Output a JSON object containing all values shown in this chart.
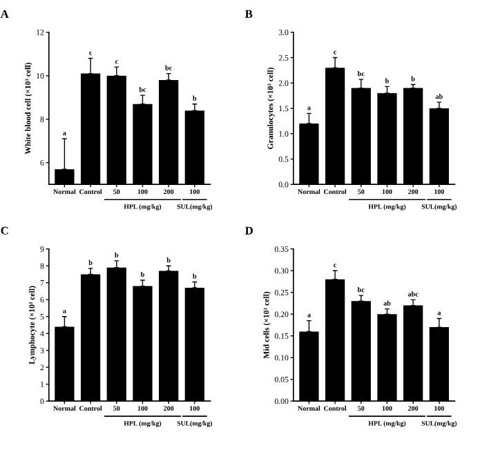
{
  "chart_data": [
    {
      "type": "bar",
      "title": "A",
      "ylabel": "White blood cell (×10³ cell)",
      "categories": [
        "Normal",
        "Control",
        "50",
        "100",
        "200",
        "100"
      ],
      "values": [
        5.7,
        10.1,
        10.0,
        8.7,
        9.8,
        8.4
      ],
      "errors": [
        1.4,
        0.7,
        0.4,
        0.4,
        0.3,
        0.3
      ],
      "color": "#000000",
      "ylim": [
        5,
        12
      ],
      "yticks": [
        6,
        8,
        10,
        12
      ],
      "annotations": [
        {
          "text": "a",
          "x": "Normal",
          "y": 7.1
        },
        {
          "text": "c",
          "x": "Control",
          "y": 10.8
        },
        {
          "text": "c",
          "x": "50",
          "y": 10.4
        },
        {
          "text": "bc",
          "y": 9.1
        },
        {
          "text": "bc",
          "x": "200",
          "y": 10.1
        },
        {
          "text": "b",
          "y": 8.7
        },
        "HPL (mg/kg)",
        "SUL(mg/kg)"
      ]
    },
    {
      "type": "bar",
      "title": "B",
      "ylabel": "Granulocytes (×10³ cell)",
      "categories": [
        "Normal",
        "Control",
        "50",
        "100",
        "200",
        "100"
      ],
      "values": [
        1.2,
        2.3,
        1.9,
        1.8,
        1.9,
        1.5
      ],
      "errors": [
        0.2,
        0.2,
        0.17,
        0.13,
        0.07,
        0.12
      ],
      "color": "#000000",
      "ylim": [
        0,
        3.0
      ],
      "yticks": [
        {
          "value": 0,
          "label": "0.0"
        },
        0.5,
        {
          "value": 1,
          "label": "1.0"
        },
        1.5,
        {
          "value": 2,
          "label": "2.0"
        },
        2.5,
        {
          "value": 3,
          "label": "3.0"
        }
      ],
      "annotations": [
        {
          "text": "a",
          "x": "Normal",
          "y": 1.4
        },
        {
          "text": "c",
          "x": "Control",
          "y": 2.5
        },
        {
          "text": "bc",
          "x": "50",
          "y": 2.07
        },
        {
          "text": "b",
          "y": 1.93
        },
        {
          "text": "b",
          "x": "200",
          "y": 1.97
        },
        {
          "text": "ab",
          "y": 1.62
        },
        "HPL (mg/kg)",
        "SUL(mg/kg)"
      ]
    },
    {
      "type": "bar",
      "title": "C",
      "ylabel": "Lymphocyte (×10³ cell)",
      "categories": [
        "Normal",
        "Control",
        "50",
        "100",
        "200",
        "100"
      ],
      "values": [
        4.4,
        7.5,
        7.9,
        6.8,
        7.7,
        6.7
      ],
      "errors": [
        0.6,
        0.35,
        0.4,
        0.35,
        0.3,
        0.35
      ],
      "color": "#000000",
      "ylim": [
        0,
        9
      ],
      "yticks": [
        0,
        1,
        2,
        3,
        4,
        5,
        6,
        7,
        8,
        9
      ],
      "annotations": [
        {
          "text": "a",
          "x": "Normal",
          "y": 5.0
        },
        {
          "text": "b",
          "x": "Control",
          "y": 7.85
        },
        {
          "text": "b",
          "x": "50",
          "y": 8.3
        },
        {
          "text": "b",
          "y": 7.15
        },
        {
          "text": "b",
          "x": "200",
          "y": 8.0
        },
        {
          "text": "b",
          "y": 7.05
        },
        "HPL (mg/kg)",
        "SUL(mg/kg)"
      ]
    },
    {
      "type": "bar",
      "title": "D",
      "ylabel": "Mid cells (×10³ cell)",
      "categories": [
        "Normal",
        "Control",
        "50",
        "100",
        "200",
        "100"
      ],
      "values": [
        0.16,
        0.28,
        0.23,
        0.2,
        0.22,
        0.17
      ],
      "errors": [
        0.025,
        0.02,
        0.013,
        0.012,
        0.013,
        0.02
      ],
      "color": "#000000",
      "ylim": [
        0,
        0.35
      ],
      "yticks": [
        {
          "value": 0,
          "label": "0.00"
        },
        0.05,
        {
          "value": 0.1,
          "label": "0.10"
        },
        0.15,
        {
          "value": 0.2,
          "label": "0.20"
        },
        0.25,
        {
          "value": 0.3,
          "label": "0.30"
        },
        0.35
      ],
      "annotations": [
        {
          "text": "a",
          "x": "Normal",
          "y": 0.185
        },
        {
          "text": "c",
          "x": "Control",
          "y": 0.3
        },
        {
          "text": "bc",
          "x": "50",
          "y": 0.243
        },
        {
          "text": "ab",
          "y": 0.212
        },
        {
          "text": "abc",
          "x": "200",
          "y": 0.233
        },
        {
          "text": "a",
          "y": 0.19
        },
        "HPL (mg/kg)",
        "SUL(mg/kg)"
      ]
    }
  ]
}
